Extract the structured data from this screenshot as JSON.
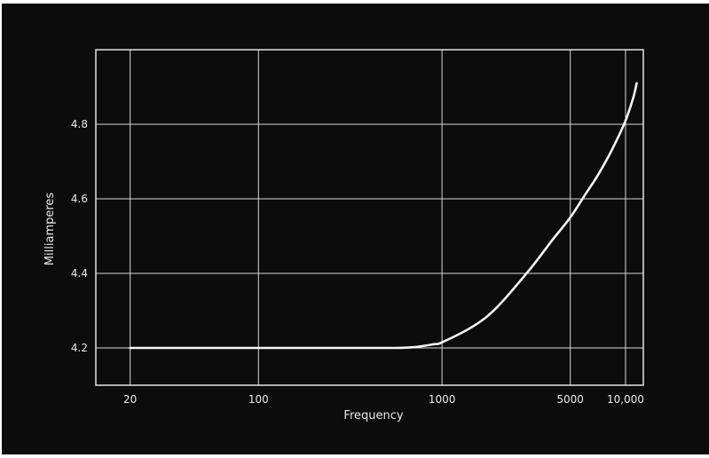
{
  "chart_data": {
    "type": "line",
    "title": "",
    "xlabel": "Frequency",
    "ylabel": "Milliamperes",
    "x_scale": "log",
    "xlim": [
      13,
      12500
    ],
    "ylim": [
      4.1,
      5.0
    ],
    "x_ticks": [
      {
        "value": 20,
        "label": "20"
      },
      {
        "value": 100,
        "label": "100"
      },
      {
        "value": 1000,
        "label": "1000"
      },
      {
        "value": 5000,
        "label": "5000"
      },
      {
        "value": 10000,
        "label": "10,000"
      }
    ],
    "y_ticks": [
      {
        "value": 4.2,
        "label": "4.2"
      },
      {
        "value": 4.4,
        "label": "4.4"
      },
      {
        "value": 4.6,
        "label": "4.6"
      },
      {
        "value": 4.8,
        "label": "4.8"
      }
    ],
    "grid": true,
    "series": [
      {
        "points": [
          [
            20,
            4.2
          ],
          [
            100,
            4.2
          ],
          [
            300,
            4.2
          ],
          [
            550,
            4.2
          ],
          [
            700,
            4.202
          ],
          [
            900,
            4.21
          ],
          [
            1000,
            4.215
          ],
          [
            1500,
            4.26
          ],
          [
            2000,
            4.31
          ],
          [
            3000,
            4.41
          ],
          [
            4000,
            4.49
          ],
          [
            5000,
            4.55
          ],
          [
            6000,
            4.61
          ],
          [
            7000,
            4.66
          ],
          [
            8000,
            4.71
          ],
          [
            9000,
            4.76
          ],
          [
            10000,
            4.81
          ],
          [
            11000,
            4.87
          ],
          [
            11500,
            4.91
          ]
        ]
      }
    ],
    "colors": {
      "background": "#0c0c0c",
      "line": "#f4f4f4",
      "grid": "#d8d8d8",
      "text": "#e9e9e9"
    }
  }
}
